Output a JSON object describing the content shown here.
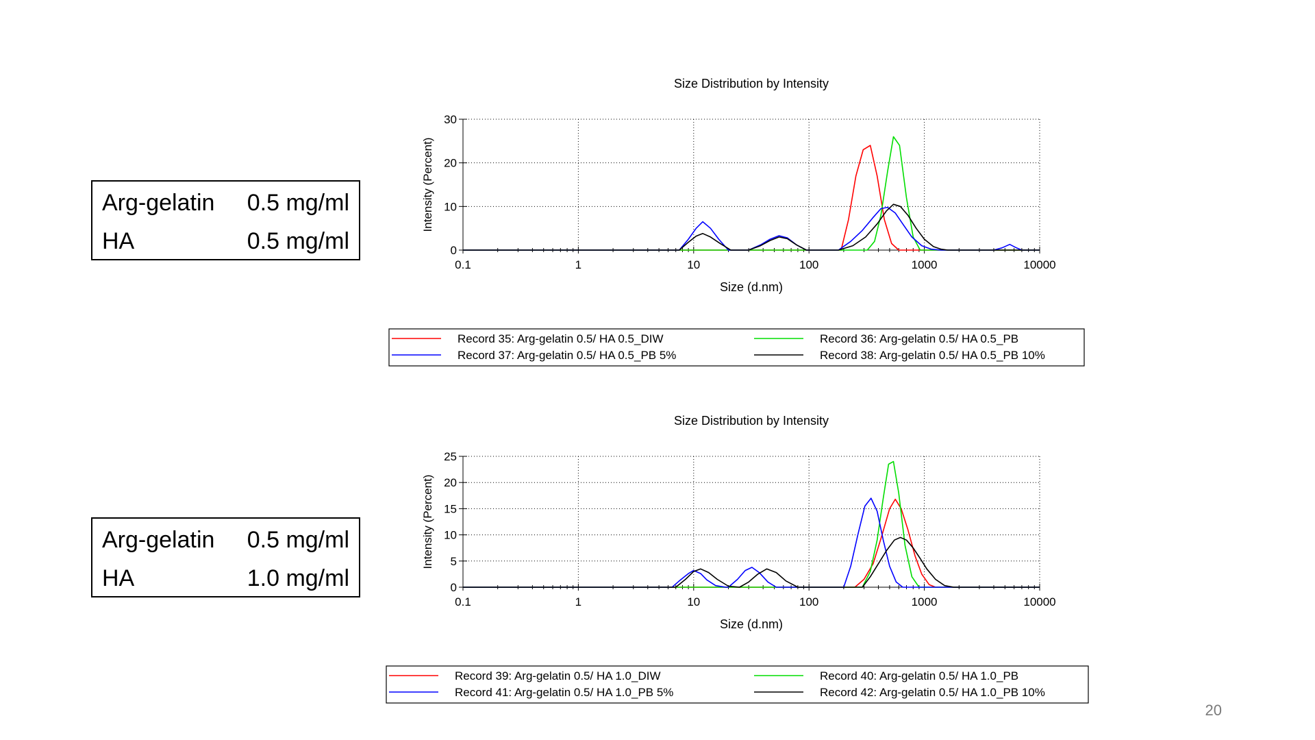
{
  "slide": {
    "page_number": "20"
  },
  "panels": [
    {
      "rows": [
        {
          "name": "Arg-gelatin",
          "value": "0.5 mg/ml"
        },
        {
          "name": "HA",
          "value": "0.5 mg/ml"
        }
      ]
    },
    {
      "rows": [
        {
          "name": "Arg-gelatin",
          "value": "0.5 mg/ml"
        },
        {
          "name": "HA",
          "value": "1.0 mg/ml"
        }
      ]
    }
  ],
  "chart_data": [
    {
      "type": "line",
      "title": "Size Distribution by Intensity",
      "xlabel": "Size (d.nm)",
      "ylabel": "Intensity (Percent)",
      "xscale": "log",
      "xlim": [
        0.1,
        10000
      ],
      "ylim": [
        0,
        30
      ],
      "xticks": [
        "0.1",
        "1",
        "10",
        "100",
        "1000",
        "10000"
      ],
      "yticks": [
        "0",
        "10",
        "20",
        "30"
      ],
      "grid": true,
      "legend_position": "bottom",
      "series": [
        {
          "name": "Record 35: Arg-gelatin 0.5/ HA 0.5_DIW",
          "color": "#ff0000",
          "x": [
            190,
            220,
            255,
            295,
            340,
            390,
            450,
            520,
            600
          ],
          "y": [
            0,
            7,
            17,
            23,
            24,
            17,
            7,
            1.5,
            0
          ]
        },
        {
          "name": "Record 36: Arg-gelatin 0.5/ HA 0.5_PB",
          "color": "#00dd00",
          "x": [
            320,
            370,
            420,
            480,
            540,
            610,
            700,
            800,
            920
          ],
          "y": [
            0,
            2,
            8,
            18,
            26,
            24,
            12,
            3,
            0
          ]
        },
        {
          "name": "Record 37: Arg-gelatin 0.5/ HA 0.5_PB 5%",
          "color": "#0000ff",
          "x": [
            7.5,
            9,
            10.5,
            12,
            14,
            16.5,
            20,
            30,
            38,
            46,
            55,
            65,
            78,
            95,
            180,
            230,
            290,
            360,
            420,
            480,
            560,
            650,
            780,
            950,
            1150,
            1400,
            4000,
            4700,
            5500,
            6300,
            7000
          ],
          "y": [
            0,
            2.5,
            5,
            6.5,
            5,
            2.5,
            0,
            0,
            1.2,
            2.5,
            3.3,
            2.8,
            1.2,
            0,
            0,
            2,
            4.5,
            7.5,
            9.5,
            9.8,
            8.5,
            6,
            3,
            1,
            0.2,
            0,
            0,
            0.5,
            1.3,
            0.5,
            0
          ]
        },
        {
          "name": "Record 38: Arg-gelatin 0.5/ HA 0.5_PB 10%",
          "color": "#000000",
          "x": [
            7.5,
            9,
            10.5,
            12,
            14,
            17,
            21,
            30,
            38,
            46,
            55,
            65,
            78,
            95,
            180,
            240,
            310,
            390,
            470,
            540,
            620,
            720,
            850,
            1000,
            1200,
            1400,
            1600
          ],
          "y": [
            0,
            1.8,
            3.2,
            3.8,
            3,
            1.5,
            0,
            0,
            1,
            2.2,
            3,
            2.6,
            1.2,
            0,
            0,
            1,
            3,
            6,
            9,
            10.5,
            10,
            8,
            5,
            2.5,
            0.8,
            0.2,
            0
          ]
        }
      ]
    },
    {
      "type": "line",
      "title": "Size Distribution by Intensity",
      "xlabel": "Size (d.nm)",
      "ylabel": "Intensity (Percent)",
      "xscale": "log",
      "xlim": [
        0.1,
        10000
      ],
      "ylim": [
        0,
        25
      ],
      "xticks": [
        "0.1",
        "1",
        "10",
        "100",
        "1000",
        "10000"
      ],
      "yticks": [
        "0",
        "5",
        "10",
        "15",
        "20",
        "25"
      ],
      "grid": true,
      "legend_position": "bottom",
      "series": [
        {
          "name": "Record 39: Arg-gelatin 0.5/ HA 1.0_DIW",
          "color": "#ff0000",
          "x": [
            250,
            300,
            360,
            430,
            500,
            560,
            630,
            720,
            830,
            950,
            1100,
            1250
          ],
          "y": [
            0,
            1.5,
            4.5,
            10,
            15,
            16.8,
            15,
            11,
            6,
            2.5,
            0.5,
            0
          ]
        },
        {
          "name": "Record 40: Arg-gelatin 0.5/ HA 1.0_PB",
          "color": "#00dd00",
          "x": [
            290,
            340,
            390,
            440,
            490,
            540,
            600,
            680,
            780,
            900
          ],
          "y": [
            0,
            3,
            9,
            17,
            23.5,
            24,
            18,
            8,
            2,
            0
          ]
        },
        {
          "name": "Record 41: Arg-gelatin  0.5/ HA 1.0_PB 5%",
          "color": "#0000ff",
          "x": [
            6.5,
            7.5,
            9,
            10,
            11.5,
            13,
            15.5,
            19,
            20,
            24,
            28,
            32,
            37,
            44,
            52,
            200,
            230,
            265,
            305,
            345,
            390,
            440,
            500,
            570,
            650
          ],
          "y": [
            0,
            1.2,
            2.6,
            3.2,
            2.6,
            1.4,
            0.3,
            0,
            0,
            1.5,
            3.2,
            3.8,
            2.8,
            1,
            0,
            0,
            4,
            10,
            15.5,
            17,
            14.5,
            9,
            4,
            1,
            0
          ]
        },
        {
          "name": "Record 42: Arg-gelatin  0.5/ HA 1.0_PB 10%",
          "color": "#000000",
          "x": [
            7,
            8.5,
            10,
            11.5,
            13.5,
            16,
            20,
            25,
            30,
            36,
            43,
            52,
            63,
            80,
            290,
            340,
            400,
            470,
            550,
            620,
            700,
            800,
            920,
            1050,
            1250,
            1500,
            1800
          ],
          "y": [
            0,
            1.5,
            3,
            3.5,
            2.8,
            1.5,
            0.2,
            0,
            1,
            2.5,
            3.5,
            2.8,
            1.2,
            0,
            0,
            2,
            4.5,
            7,
            9,
            9.5,
            9,
            7.5,
            5.5,
            3.5,
            1.5,
            0.3,
            0
          ]
        }
      ]
    }
  ]
}
